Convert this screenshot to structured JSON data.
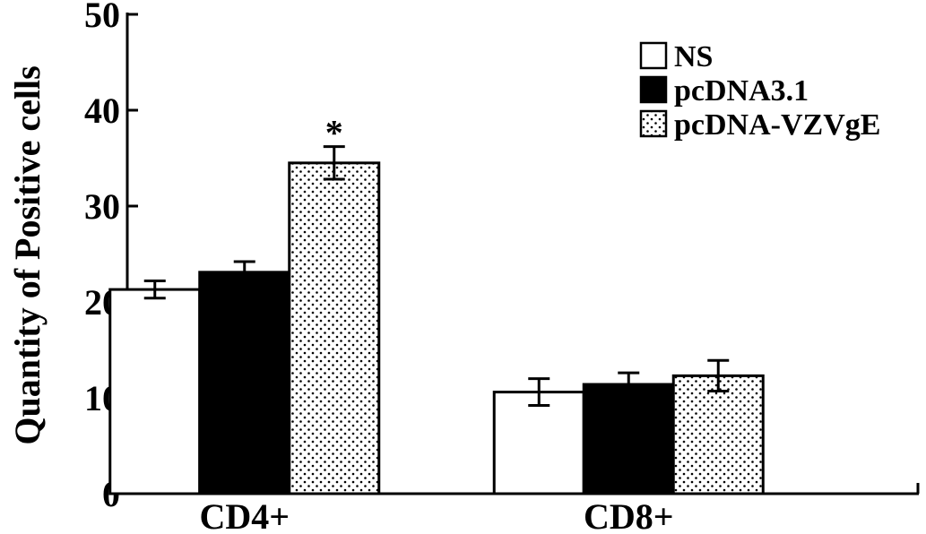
{
  "chart_data": {
    "type": "bar",
    "title": "",
    "xlabel": "",
    "ylabel": "Quantity of Positive cells",
    "ylim": [
      0,
      50
    ],
    "yticks": [
      0,
      10,
      20,
      30,
      40,
      50
    ],
    "categories": [
      "CD4+",
      "CD8+"
    ],
    "series": [
      {
        "name": "NS",
        "fill": "white",
        "values": [
          21.3,
          10.6
        ],
        "errors": [
          0.9,
          1.4
        ]
      },
      {
        "name": "pcDNA3.1",
        "fill": "black",
        "values": [
          23.1,
          11.4
        ],
        "errors": [
          1.1,
          1.2
        ]
      },
      {
        "name": "pcDNA-VZVgE",
        "fill": "dotted",
        "values": [
          34.5,
          12.3
        ],
        "errors": [
          1.7,
          1.6
        ]
      }
    ],
    "annotations": [
      {
        "text": "*",
        "category": "CD4+",
        "series": "pcDNA-VZVgE"
      }
    ],
    "legend_position": "top-right",
    "grid": false
  }
}
